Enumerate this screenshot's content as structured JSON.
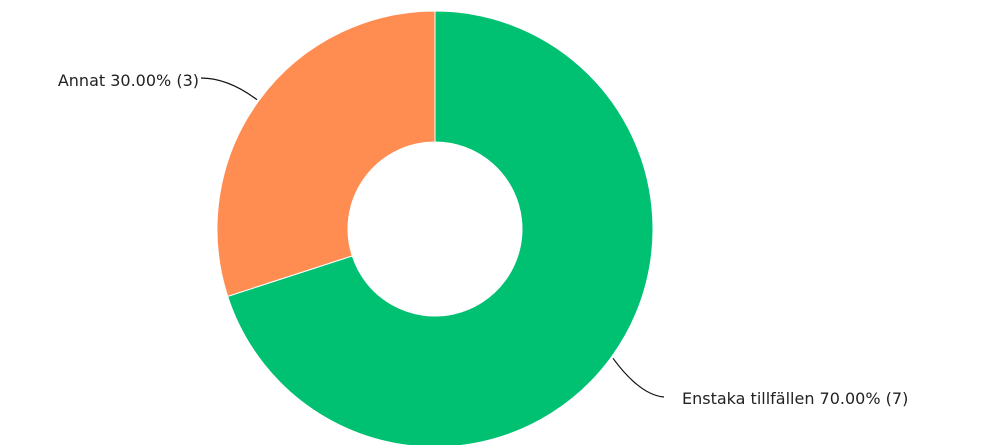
{
  "chart_data": {
    "type": "pie",
    "variant": "donut",
    "title": "",
    "legend": "none",
    "slices": [
      {
        "label": "Enstaka tillfällen",
        "value": 7,
        "percent": "70.00%",
        "display": "Enstaka tillfällen 70.00% (7)",
        "color": "#00c072"
      },
      {
        "label": "Annat",
        "value": 3,
        "percent": "30.00%",
        "display": "Annat 30.00% (3)",
        "color": "#ff8c50"
      }
    ]
  }
}
